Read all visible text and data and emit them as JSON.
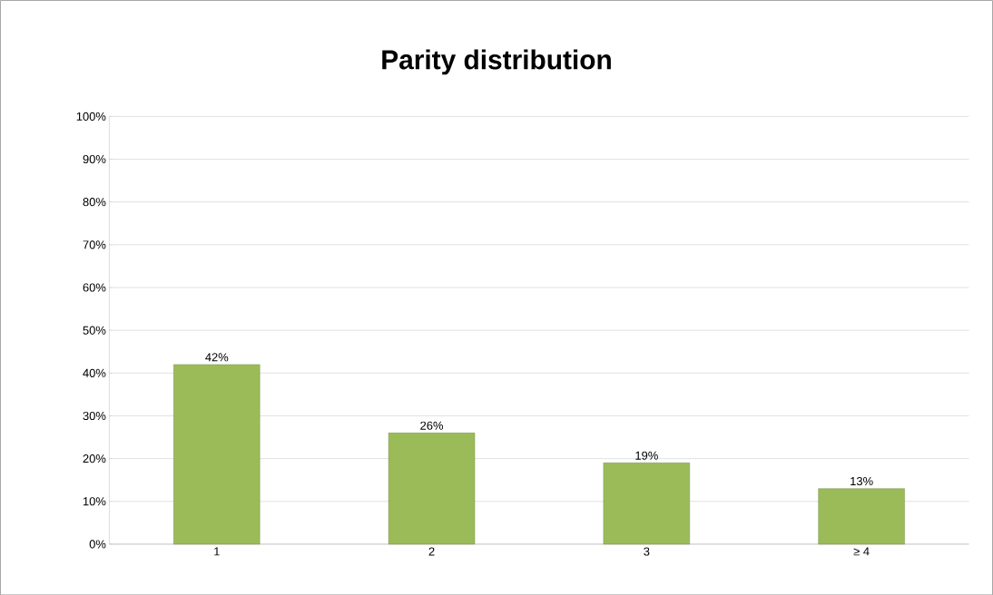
{
  "chart_data": {
    "type": "bar",
    "title": "Parity distribution",
    "categories": [
      "1",
      "2",
      "3",
      "≥ 4"
    ],
    "values": [
      42,
      26,
      19,
      13
    ],
    "value_labels": [
      "42%",
      "26%",
      "19%",
      "13%"
    ],
    "color": "#9bbb59",
    "ylim": [
      0,
      100
    ],
    "yticks": [
      {
        "value": 0,
        "label": "0%"
      },
      {
        "value": 10,
        "label": "10%"
      },
      {
        "value": 20,
        "label": "20%"
      },
      {
        "value": 30,
        "label": "30%"
      },
      {
        "value": 40,
        "label": "40%"
      },
      {
        "value": 50,
        "label": "50%"
      },
      {
        "value": 60,
        "label": "60%"
      },
      {
        "value": 70,
        "label": "70%"
      },
      {
        "value": 80,
        "label": "80%"
      },
      {
        "value": 90,
        "label": "90%"
      },
      {
        "value": 100,
        "label": "100%"
      }
    ],
    "grid": "y"
  }
}
